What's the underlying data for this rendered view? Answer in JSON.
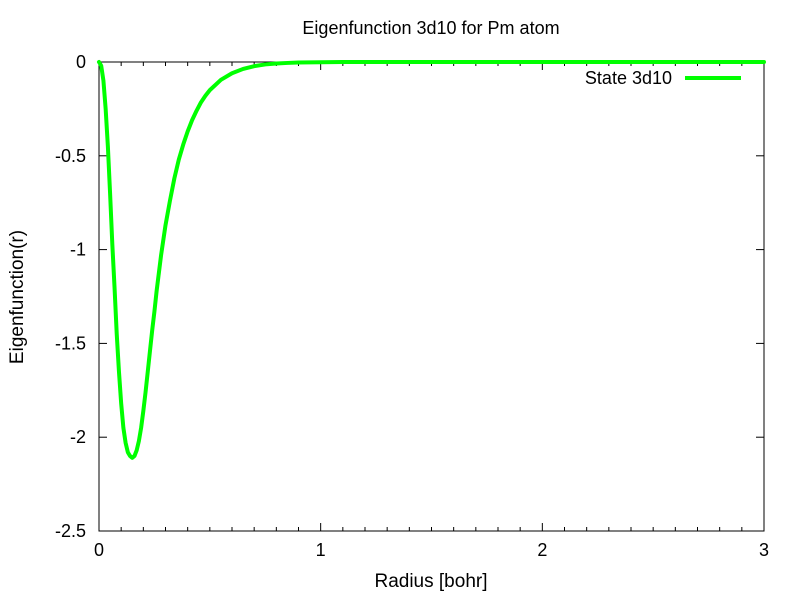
{
  "chart_data": {
    "type": "line",
    "title": "Eigenfunction 3d10 for Pm atom",
    "xlabel": "Radius [bohr]",
    "ylabel": "Eigenfunction(r)",
    "xlim": [
      0,
      3
    ],
    "ylim": [
      -2.5,
      0
    ],
    "grid": false,
    "legend_position": "top-right",
    "x_ticks": [
      {
        "value": 0,
        "label": "0"
      },
      {
        "value": 1,
        "label": "1"
      },
      {
        "value": 2,
        "label": "2"
      },
      {
        "value": 3,
        "label": "3"
      }
    ],
    "y_ticks": [
      {
        "value": 0,
        "label": "0"
      },
      {
        "value": -0.5,
        "label": "-0.5"
      },
      {
        "value": -1,
        "label": "-1"
      },
      {
        "value": -1.5,
        "label": "-1.5"
      },
      {
        "value": -2,
        "label": "-2"
      },
      {
        "value": -2.5,
        "label": "-2.5"
      }
    ],
    "series": [
      {
        "name": "State 3d10",
        "color": "#00ff00",
        "x": [
          0,
          0.01,
          0.02,
          0.03,
          0.04,
          0.05,
          0.06,
          0.07,
          0.08,
          0.09,
          0.1,
          0.11,
          0.12,
          0.13,
          0.14,
          0.15,
          0.16,
          0.17,
          0.18,
          0.19,
          0.2,
          0.21,
          0.22,
          0.23,
          0.24,
          0.25,
          0.26,
          0.28,
          0.3,
          0.32,
          0.34,
          0.36,
          0.38,
          0.4,
          0.42,
          0.44,
          0.46,
          0.48,
          0.5,
          0.55,
          0.6,
          0.65,
          0.7,
          0.75,
          0.8,
          0.85,
          0.9,
          0.95,
          1.0,
          1.05,
          1.1,
          1.2,
          1.4,
          1.6,
          1.8,
          2.0,
          2.5,
          3.0
        ],
        "y": [
          0,
          -0.02,
          -0.1,
          -0.25,
          -0.45,
          -0.7,
          -0.97,
          -1.2,
          -1.45,
          -1.65,
          -1.82,
          -1.95,
          -2.03,
          -2.08,
          -2.1,
          -2.11,
          -2.1,
          -2.07,
          -2.02,
          -1.95,
          -1.86,
          -1.76,
          -1.65,
          -1.54,
          -1.43,
          -1.33,
          -1.22,
          -1.03,
          -0.87,
          -0.74,
          -0.62,
          -0.52,
          -0.44,
          -0.37,
          -0.31,
          -0.26,
          -0.215,
          -0.18,
          -0.15,
          -0.095,
          -0.06,
          -0.037,
          -0.022,
          -0.013,
          -0.008,
          -0.005,
          -0.003,
          -0.0018,
          -0.001,
          -0.0006,
          -0.0003,
          -0.0001,
          0,
          0,
          0,
          0,
          0,
          0
        ]
      }
    ]
  }
}
